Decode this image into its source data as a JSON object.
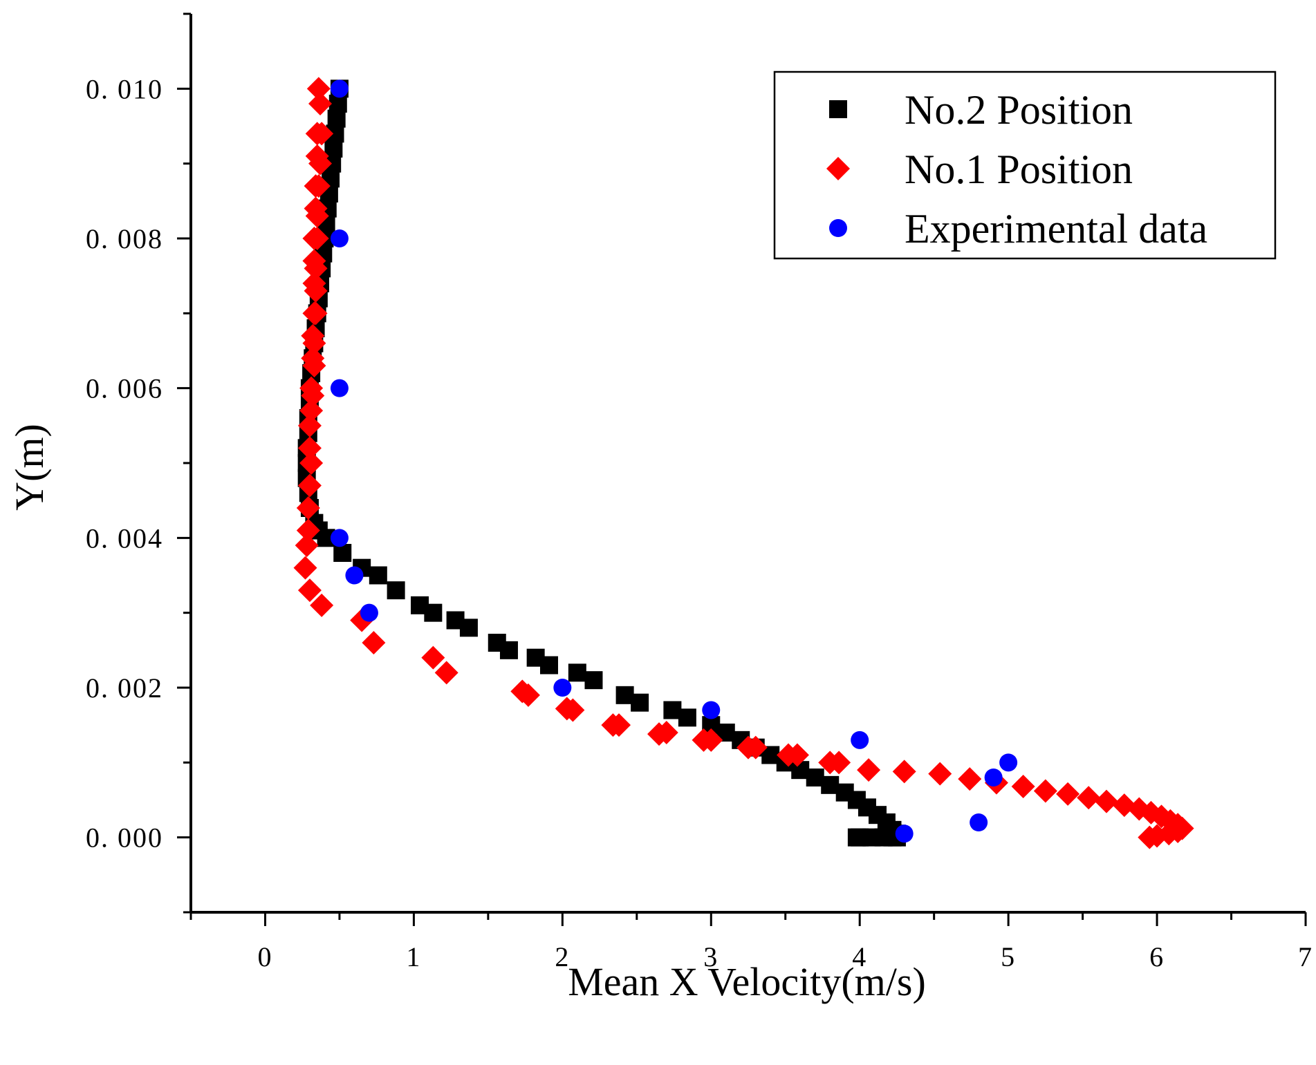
{
  "chart_data": {
    "type": "scatter",
    "title": "",
    "xlabel": "Mean X Velocity(m/s)",
    "ylabel": "Y(m)",
    "xlim": [
      -0.5,
      7
    ],
    "ylim": [
      -0.001,
      0.011
    ],
    "x_ticks": [
      0,
      1,
      2,
      3,
      4,
      5,
      6,
      7
    ],
    "x_tick_labels": [
      "0",
      "1",
      "2",
      "3",
      "4",
      "5",
      "6",
      "7"
    ],
    "y_ticks": [
      0.0,
      0.002,
      0.004,
      0.006,
      0.008,
      0.01
    ],
    "y_tick_labels": [
      "0. 000",
      "0. 002",
      "0. 004",
      "0. 006",
      "0. 008",
      "0. 010"
    ],
    "grid": false,
    "legend_position": "top-right",
    "series": [
      {
        "name": "No.2 Position",
        "marker": "square",
        "color": "#000000",
        "x": [
          0.5,
          0.49,
          0.48,
          0.47,
          0.46,
          0.45,
          0.44,
          0.43,
          0.42,
          0.41,
          0.4,
          0.39,
          0.38,
          0.37,
          0.36,
          0.35,
          0.34,
          0.33,
          0.32,
          0.31,
          0.3,
          0.3,
          0.29,
          0.29,
          0.28,
          0.28,
          0.28,
          0.29,
          0.3,
          0.33,
          0.36,
          0.41,
          0.52,
          0.65,
          0.76,
          0.88,
          1.04,
          1.13,
          1.28,
          1.37,
          1.56,
          1.64,
          1.82,
          1.91,
          2.1,
          2.21,
          2.42,
          2.52,
          2.74,
          2.84,
          3.0,
          3.1,
          3.2,
          3.3,
          3.4,
          3.5,
          3.6,
          3.7,
          3.8,
          3.9,
          3.98,
          4.05,
          4.12,
          4.18,
          4.22,
          4.25,
          4.25,
          4.22,
          4.16,
          4.08,
          4.0,
          3.98
        ],
        "y": [
          0.01,
          0.0098,
          0.0096,
          0.0094,
          0.0092,
          0.009,
          0.0088,
          0.0086,
          0.0084,
          0.0082,
          0.008,
          0.0078,
          0.0076,
          0.0074,
          0.0072,
          0.007,
          0.0068,
          0.0066,
          0.0064,
          0.0062,
          0.006,
          0.0058,
          0.0056,
          0.0054,
          0.0052,
          0.005,
          0.0048,
          0.0046,
          0.0044,
          0.0042,
          0.0041,
          0.004,
          0.0038,
          0.0036,
          0.0035,
          0.0033,
          0.0031,
          0.003,
          0.0029,
          0.0028,
          0.0026,
          0.0025,
          0.0024,
          0.0023,
          0.0022,
          0.0021,
          0.0019,
          0.0018,
          0.0017,
          0.0016,
          0.0015,
          0.0014,
          0.0013,
          0.0012,
          0.0011,
          0.001,
          0.0009,
          0.0008,
          0.0007,
          0.0006,
          0.0005,
          0.0004,
          0.0003,
          0.0002,
          0.0001,
          5e-05,
          0.0,
          0.0,
          0.0,
          0.0,
          0.0,
          0.0
        ]
      },
      {
        "name": "No.1 Position",
        "marker": "diamond",
        "color": "#ff0000",
        "x": [
          0.36,
          0.37,
          0.35,
          0.38,
          0.35,
          0.37,
          0.34,
          0.36,
          0.34,
          0.35,
          0.33,
          0.35,
          0.33,
          0.34,
          0.33,
          0.34,
          0.33,
          0.34,
          0.32,
          0.33,
          0.32,
          0.33,
          0.31,
          0.32,
          0.31,
          0.3,
          0.3,
          0.31,
          0.3,
          0.29,
          0.29,
          0.28,
          0.27,
          0.3,
          0.38,
          0.65,
          0.73,
          1.13,
          1.22,
          1.73,
          1.77,
          2.03,
          2.07,
          2.34,
          2.38,
          2.65,
          2.7,
          2.95,
          3.0,
          3.25,
          3.3,
          3.52,
          3.58,
          3.8,
          3.86,
          4.06,
          4.3,
          4.54,
          4.74,
          4.92,
          5.1,
          5.25,
          5.4,
          5.54,
          5.66,
          5.78,
          5.88,
          5.96,
          6.03,
          6.09,
          6.14,
          6.17,
          6.14,
          6.08,
          6.0,
          5.95
        ],
        "y": [
          0.01,
          0.0098,
          0.0094,
          0.0094,
          0.0091,
          0.009,
          0.0087,
          0.0087,
          0.0084,
          0.0083,
          0.008,
          0.008,
          0.0077,
          0.0076,
          0.0074,
          0.0073,
          0.007,
          0.007,
          0.0067,
          0.0066,
          0.0064,
          0.0063,
          0.006,
          0.0059,
          0.0057,
          0.0055,
          0.0052,
          0.005,
          0.0047,
          0.0044,
          0.0041,
          0.0039,
          0.0036,
          0.0033,
          0.0031,
          0.0029,
          0.0026,
          0.0024,
          0.0022,
          0.00195,
          0.0019,
          0.00172,
          0.0017,
          0.0015,
          0.0015,
          0.00138,
          0.0014,
          0.0013,
          0.0013,
          0.0012,
          0.0012,
          0.0011,
          0.0011,
          0.001,
          0.001,
          0.0009,
          0.00088,
          0.00085,
          0.00078,
          0.00073,
          0.00068,
          0.00062,
          0.00058,
          0.00053,
          0.00048,
          0.00043,
          0.00038,
          0.00033,
          0.00028,
          0.00022,
          0.00017,
          0.00012,
          8e-05,
          5e-05,
          2e-05,
          0.0
        ],
        "note": "diamond series plotted in data units"
      },
      {
        "name": "Experimental data",
        "marker": "circle",
        "color": "#0000ff",
        "x": [
          0.5,
          0.5,
          0.5,
          0.5,
          0.6,
          0.7,
          2.0,
          3.0,
          4.0,
          4.3,
          4.8,
          4.9,
          5.0
        ],
        "y": [
          0.01,
          0.008,
          0.006,
          0.004,
          0.0035,
          0.003,
          0.002,
          0.0017,
          0.0013,
          5e-05,
          0.0002,
          0.0008,
          0.001
        ]
      }
    ]
  }
}
